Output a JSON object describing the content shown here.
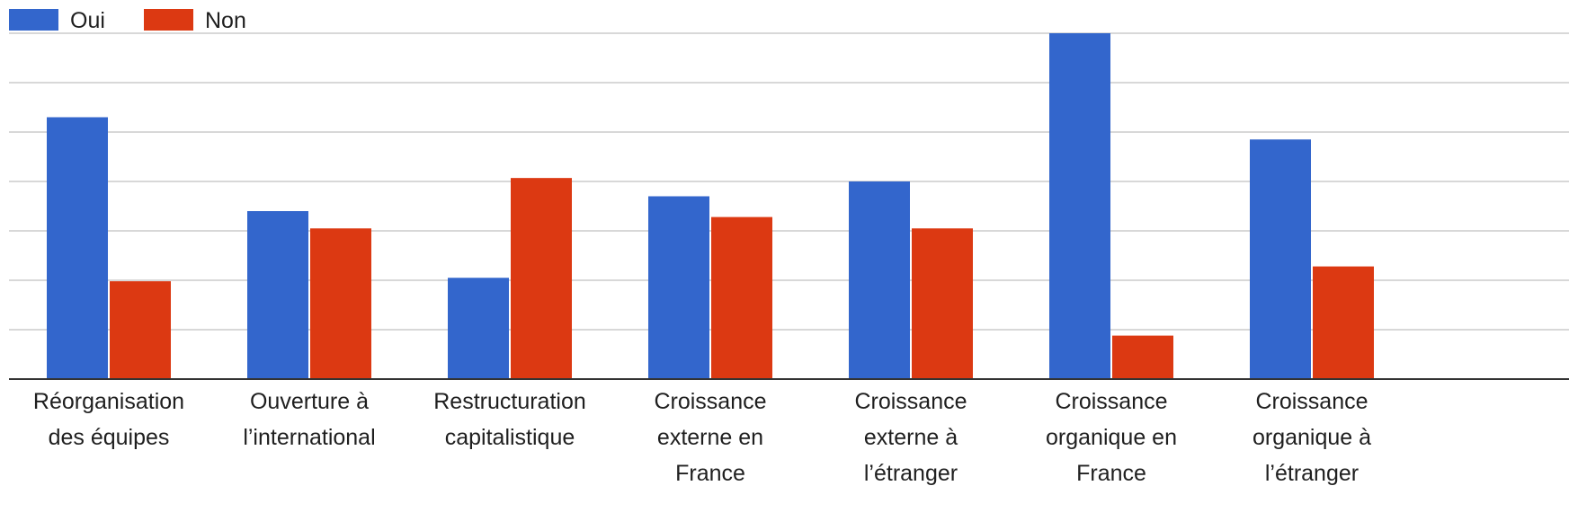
{
  "chart_data": {
    "type": "bar",
    "title": "",
    "xlabel": "",
    "ylabel": "",
    "ylim": [
      0,
      7
    ],
    "grid": true,
    "legend_position": "top-left",
    "categories": [
      [
        "Réorganisation",
        "des équipes"
      ],
      [
        "Ouverture à",
        "l’international"
      ],
      [
        "Restructuration",
        "capitalistique"
      ],
      [
        "Croissance",
        "externe en",
        "France"
      ],
      [
        "Croissance",
        "externe à",
        "l’étranger"
      ],
      [
        "Croissance",
        "organique en",
        "France"
      ],
      [
        "Croissance",
        "organique à",
        "l’étranger"
      ]
    ],
    "series": [
      {
        "name": "Oui",
        "color": "#3366cc",
        "values": [
          5.3,
          3.4,
          2.05,
          3.7,
          4.0,
          7.0,
          4.85
        ]
      },
      {
        "name": "Non",
        "color": "#dc3912",
        "values": [
          1.98,
          3.05,
          4.07,
          3.28,
          3.05,
          0.88,
          2.28
        ]
      }
    ]
  }
}
